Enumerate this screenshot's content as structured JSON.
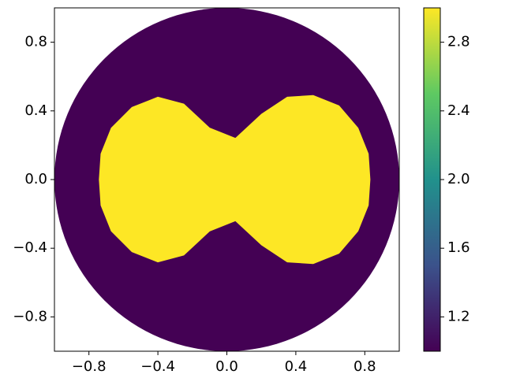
{
  "chart_data": {
    "type": "field",
    "xlim": [
      -1,
      1
    ],
    "ylim": [
      -1,
      1
    ],
    "xticks": [
      {
        "value": -0.8,
        "label": "−0.8"
      },
      {
        "value": -0.4,
        "label": "−0.4"
      },
      {
        "value": 0,
        "label": "0.0"
      },
      0.4,
      0.8
    ],
    "yticks": [
      {
        "value": -0.8,
        "label": "−0.8"
      },
      {
        "value": -0.4,
        "label": "−0.4"
      },
      {
        "value": 0,
        "label": "0.0"
      },
      0.4,
      0.8
    ],
    "domain": {
      "radius": 1,
      "value": 1.0
    },
    "region": {
      "value": 3.0,
      "x": [
        0.05,
        0.2,
        0.35,
        0.5,
        0.65,
        0.76,
        0.82,
        0.83,
        0.82,
        0.76,
        0.65,
        0.5,
        0.35,
        0.2,
        0.05,
        -0.1,
        -0.25,
        -0.4,
        -0.55,
        -0.67,
        -0.73,
        -0.74,
        -0.73,
        -0.67,
        -0.55,
        -0.4,
        -0.25,
        -0.1
      ],
      "y": [
        0.24,
        0.38,
        0.48,
        0.49,
        0.43,
        0.3,
        0.15,
        0,
        -0.15,
        -0.3,
        -0.43,
        -0.49,
        -0.48,
        -0.38,
        -0.24,
        -0.3,
        -0.44,
        -0.48,
        -0.42,
        -0.3,
        -0.15,
        0,
        0.15,
        0.3,
        0.42,
        0.48,
        0.44,
        0.3
      ]
    },
    "clim": [
      1.0,
      3.0
    ],
    "cticks": [
      1.2,
      1.6,
      {
        "value": 2.0,
        "label": "2.0"
      },
      2.4,
      2.8
    ],
    "colormap": [
      "#440154",
      "#3b528b",
      "#21918c",
      "#5ec962",
      "#fde725"
    ]
  }
}
